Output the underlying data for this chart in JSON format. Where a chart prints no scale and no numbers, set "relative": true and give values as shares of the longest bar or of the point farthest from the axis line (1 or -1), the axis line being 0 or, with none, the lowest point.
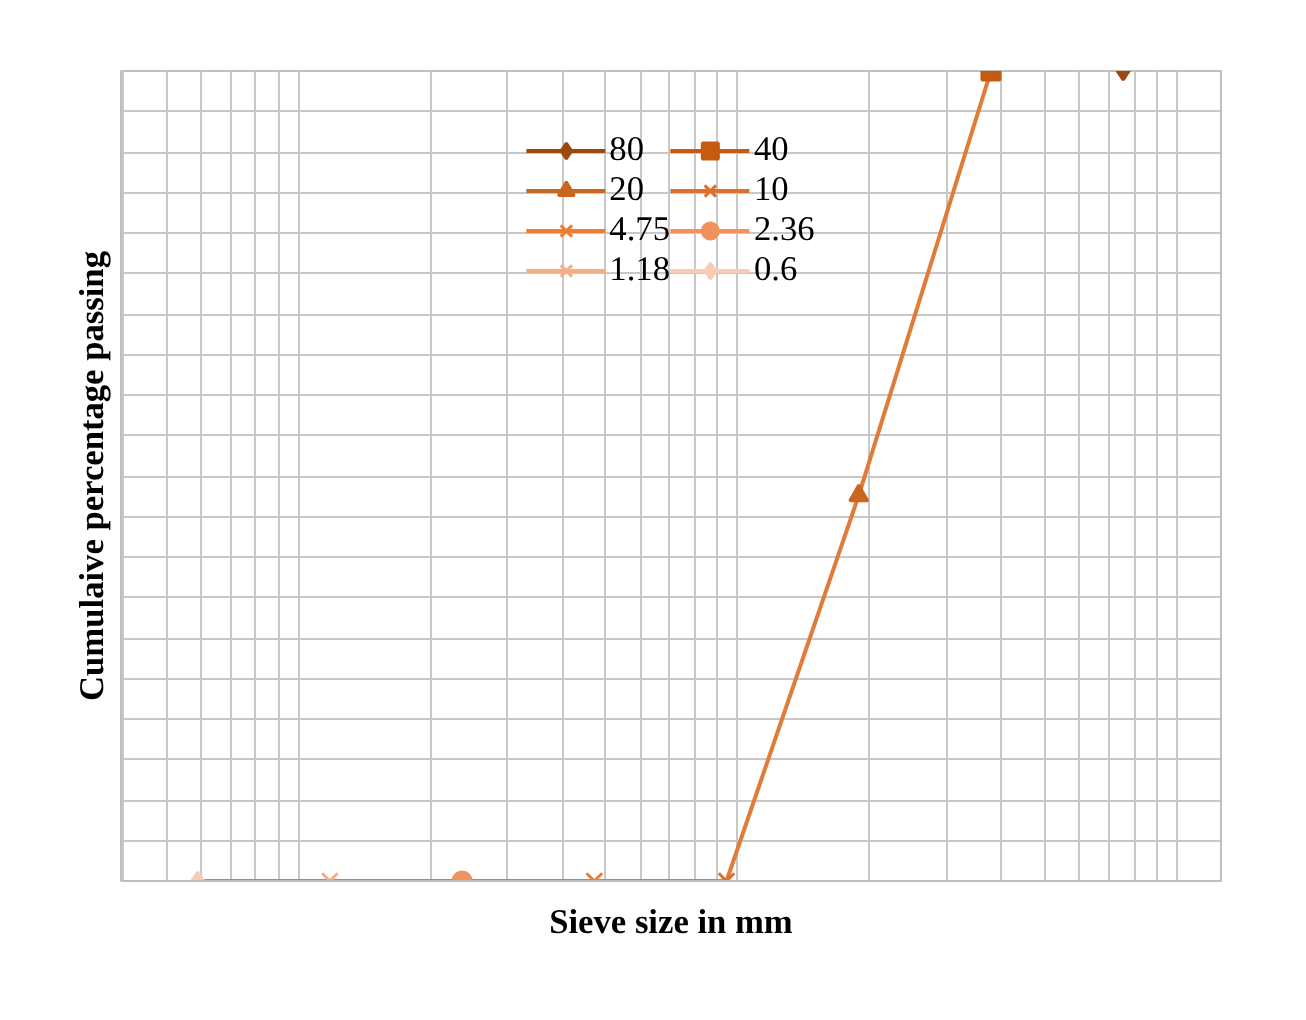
{
  "chart_data": {
    "type": "line",
    "relative": true,
    "xlabel": "Sieve size in mm",
    "ylabel": "Cumulaive percentage passing",
    "categories": [
      null,
      null,
      null,
      null,
      null,
      null,
      null,
      null
    ],
    "grid": true,
    "legend": "top",
    "series": [
      {
        "color": "#e07b39",
        "marker": "none",
        "values": [
          0,
          0,
          0,
          0,
          0,
          0.476,
          1,
          null
        ]
      },
      {
        "name": "80",
        "color": "#9e480e",
        "marker": "diamond",
        "values": [
          null,
          null,
          null,
          null,
          null,
          null,
          null,
          1
        ]
      },
      {
        "name": "40",
        "color": "#c55a11",
        "marker": "square",
        "values": [
          null,
          null,
          null,
          null,
          null,
          null,
          1,
          null
        ]
      },
      {
        "name": "20",
        "color": "#c9661f",
        "marker": "triangle",
        "values": [
          null,
          null,
          null,
          null,
          null,
          0.476,
          null,
          null
        ]
      },
      {
        "name": "10",
        "color": "#dc722b",
        "marker": "cross",
        "values": [
          null,
          null,
          null,
          null,
          0,
          null,
          null,
          null
        ]
      },
      {
        "name": "4.75",
        "color": "#ed7d31",
        "marker": "cross",
        "values": [
          null,
          null,
          null,
          0,
          null,
          null,
          null,
          null
        ]
      },
      {
        "name": "2.36",
        "color": "#f1925c",
        "marker": "circle",
        "values": [
          null,
          null,
          0,
          null,
          null,
          null,
          null,
          null
        ]
      },
      {
        "name": "1.18",
        "color": "#f6ac85",
        "marker": "cross",
        "values": [
          null,
          0,
          null,
          null,
          null,
          null,
          null,
          null
        ]
      },
      {
        "name": "0.6",
        "color": "#f9cbb4",
        "marker": "diamond",
        "values": [
          0,
          null,
          null,
          null,
          null,
          null,
          null,
          null
        ]
      }
    ]
  }
}
